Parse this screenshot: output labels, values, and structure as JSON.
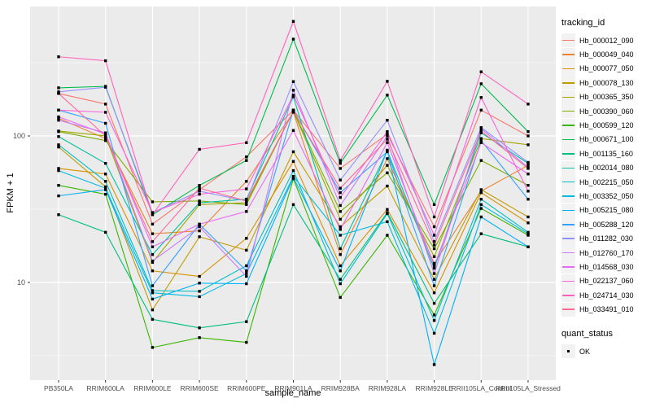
{
  "chart_data": {
    "type": "line",
    "scale_y": "log10",
    "title": "",
    "xlabel": "sample_name",
    "ylabel": "FPKM + 1",
    "x_categories": [
      "PB350LA",
      "RRIM600LA",
      "RRIM600LE",
      "RRIM600SE",
      "RRIM600PE",
      "RRIM901LA",
      "RRIM928BA",
      "RRIM928LA",
      "RRIM928LE",
      "RRII105LA_Control",
      "RRII105LA_Stressed"
    ],
    "y_ticks": [
      {
        "label": "100",
        "value": 100
      },
      {
        "label": "10",
        "value": 10
      }
    ],
    "y_minor_gridlines": [
      316.23,
      31.62,
      3.162
    ],
    "ylim": [
      2.15,
      765
    ],
    "grid": "on",
    "legend_position": "right",
    "panel_background": "#EBEBEB",
    "gridline_color": "#FFFFFF",
    "tick_label_color": "#4D4D4D",
    "tick_mark_color": "#333333",
    "marker_color": "#000000",
    "series": [
      {
        "name": "Hb_000012_090",
        "color": "#F8766D",
        "values": [
          195,
          165,
          25,
          43,
          72,
          150,
          60,
          103,
          24,
          150,
          100
        ]
      },
      {
        "name": "Hb_000049_040",
        "color": "#EA8331",
        "values": [
          132,
          96,
          21.5,
          22.5,
          49,
          145,
          15.5,
          70,
          13.5,
          42,
          63
        ]
      },
      {
        "name": "Hb_000077_050",
        "color": "#D89000",
        "values": [
          60,
          55,
          12,
          11,
          20,
          67,
          13,
          31.5,
          8.5,
          41,
          25.5
        ]
      },
      {
        "name": "Hb_000078_130",
        "color": "#C09B00",
        "values": [
          84,
          45,
          6.5,
          20.5,
          16.6,
          78,
          24,
          45.5,
          10.5,
          43,
          28
        ]
      },
      {
        "name": "Hb_000365_350",
        "color": "#A3A500",
        "values": [
          108,
          100,
          13.7,
          34,
          35,
          147,
          27,
          63,
          15,
          96,
          87
        ]
      },
      {
        "name": "Hb_000390_060",
        "color": "#7CAE00",
        "values": [
          107,
          93,
          35.5,
          36,
          34,
          148,
          30.5,
          56,
          17,
          68,
          46
        ]
      },
      {
        "name": "Hb_000599_120",
        "color": "#39B600",
        "values": [
          46,
          40,
          3.6,
          4.2,
          3.9,
          51,
          7.9,
          21,
          6,
          32,
          21
        ]
      },
      {
        "name": "Hb_000671_100",
        "color": "#00BB4E",
        "values": [
          213,
          218,
          29,
          46,
          68,
          458,
          65,
          190,
          34,
          227,
          107
        ]
      },
      {
        "name": "Hb_001135_160",
        "color": "#00BF7D",
        "values": [
          29,
          22,
          5.6,
          4.9,
          5.4,
          34,
          10.5,
          30,
          7.2,
          21.5,
          17.5
        ]
      },
      {
        "name": "Hb_002014_080",
        "color": "#00C1A3",
        "values": [
          99,
          65,
          15.5,
          35,
          37,
          185,
          17,
          79,
          12.5,
          105,
          65
        ]
      },
      {
        "name": "Hb_002215_050",
        "color": "#00BFC4",
        "values": [
          87,
          49,
          8.8,
          8.7,
          13,
          58,
          9.8,
          29.5,
          5.5,
          37,
          22
        ]
      },
      {
        "name": "Hb_003352_050",
        "color": "#00BAE0",
        "values": [
          58,
          44,
          8.5,
          8.0,
          11.5,
          53,
          21,
          26,
          4.5,
          34,
          21.5
        ]
      },
      {
        "name": "Hb_005215_080",
        "color": "#00B0F6",
        "values": [
          39,
          43,
          7.7,
          9.9,
          9.8,
          52,
          12,
          80,
          2.75,
          28,
          17.5
        ]
      },
      {
        "name": "Hb_005288_120",
        "color": "#35A2FF",
        "values": [
          150,
          122,
          9.5,
          25,
          12,
          150,
          41,
          78,
          9.5,
          93,
          37
        ]
      },
      {
        "name": "Hb_011282_030",
        "color": "#9590FF",
        "values": [
          200,
          215,
          30,
          42,
          36,
          235,
          50,
          128,
          19,
          114,
          66
        ]
      },
      {
        "name": "Hb_012760_170",
        "color": "#C77CFF",
        "values": [
          128,
          105,
          14,
          24,
          11,
          205,
          33.5,
          100,
          11.5,
          112,
          61
        ]
      },
      {
        "name": "Hb_014568_030",
        "color": "#E76BF3",
        "values": [
          135,
          103,
          17.5,
          25,
          30.5,
          109,
          23,
          90,
          13,
          90,
          55
        ]
      },
      {
        "name": "Hb_022137_060",
        "color": "#FA62DB",
        "values": [
          150,
          145,
          30,
          40,
          43.5,
          190,
          38,
          107,
          21,
          183,
          42
        ]
      },
      {
        "name": "Hb_024714_030",
        "color": "#FF62BC",
        "values": [
          347,
          326,
          29,
          81,
          90,
          605,
          68,
          236,
          28,
          274,
          165
        ]
      },
      {
        "name": "Hb_033491_010",
        "color": "#FF6A98",
        "values": [
          195,
          100,
          19,
          44,
          36,
          147,
          44,
          95,
          18,
          108,
          60
        ]
      }
    ],
    "legend": {
      "tracking": {
        "title": "tracking_id"
      },
      "quant": {
        "title": "quant_status",
        "items": [
          {
            "label": "OK",
            "shape": "square",
            "color": "#000000"
          }
        ]
      }
    }
  }
}
